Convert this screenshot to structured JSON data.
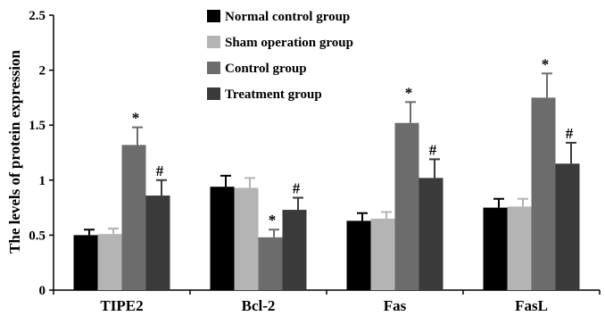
{
  "chart_data": {
    "type": "bar",
    "title": "",
    "xlabel": "",
    "ylabel": "The levels of protein expression",
    "ylim": [
      0,
      2.5
    ],
    "yticks": [
      "0",
      "0.5",
      "1",
      "1.5",
      "2",
      "2.5"
    ],
    "ytick_values": [
      0,
      0.5,
      1,
      1.5,
      2,
      2.5
    ],
    "grid": false,
    "legend_position": "top-center",
    "categories": [
      "TIPE2",
      "Bcl-2",
      "Fas",
      "FasL"
    ],
    "series": [
      {
        "name": "Normal control group",
        "color": "#000000",
        "values": [
          0.5,
          0.94,
          0.63,
          0.75
        ],
        "errors": [
          0.05,
          0.1,
          0.07,
          0.08
        ],
        "annotations": [
          "",
          "",
          "",
          ""
        ]
      },
      {
        "name": "Sham operation group",
        "color": "#b4b4b4",
        "values": [
          0.51,
          0.93,
          0.65,
          0.76
        ],
        "errors": [
          0.05,
          0.09,
          0.06,
          0.07
        ],
        "annotations": [
          "",
          "",
          "",
          ""
        ]
      },
      {
        "name": "Control group",
        "color": "#6c6c6c",
        "values": [
          1.32,
          0.48,
          1.52,
          1.75
        ],
        "errors": [
          0.16,
          0.07,
          0.19,
          0.22
        ],
        "annotations": [
          "*",
          "*",
          "*",
          "*"
        ]
      },
      {
        "name": "Treatment group",
        "color": "#3a3a3a",
        "values": [
          0.86,
          0.73,
          1.02,
          1.15
        ],
        "errors": [
          0.14,
          0.11,
          0.17,
          0.19
        ],
        "annotations": [
          "#",
          "#",
          "#",
          "#"
        ]
      }
    ]
  }
}
